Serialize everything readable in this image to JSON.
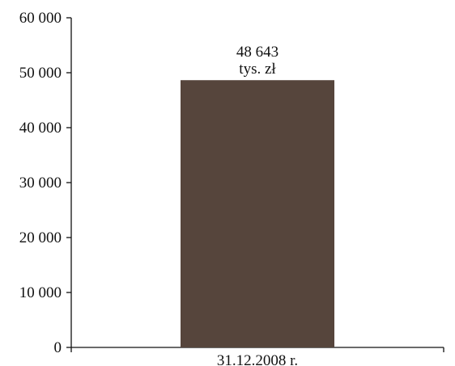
{
  "chart_data": {
    "type": "bar",
    "title": "",
    "xlabel": "",
    "ylabel": "",
    "categories": [
      "31.12.2008 r."
    ],
    "values": [
      48643
    ],
    "data_labels": [
      {
        "value_text": "48 643",
        "unit_text": "tys. zł"
      }
    ],
    "ylim": [
      0,
      60000
    ],
    "yticks": [
      0,
      10000,
      20000,
      30000,
      40000,
      50000,
      60000
    ],
    "ytick_labels": [
      "0",
      "10 000",
      "20 000",
      "30 000",
      "40 000",
      "50 000",
      "60 000"
    ],
    "grid": false,
    "legend": "none",
    "bar_color": "#56453c",
    "axis_color": "#111111"
  }
}
